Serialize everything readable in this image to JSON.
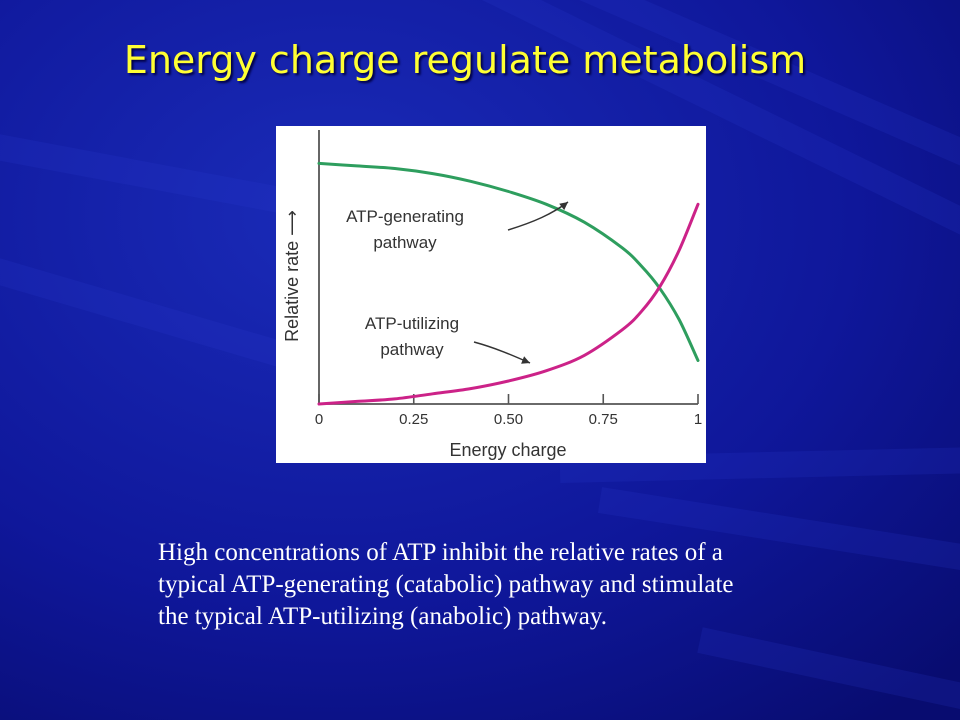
{
  "slide": {
    "title": "Energy charge regulate metabolism",
    "caption_lines": [
      "High concentrations of ATP inhibit the relative rates of a",
      "typical ATP-generating (catabolic) pathway and stimulate",
      "the typical ATP-utilizing (anabolic) pathway."
    ]
  },
  "colors": {
    "background": "#0c128a",
    "title": "#ffff33",
    "caption": "#ffffff",
    "generating_curve": "#2e9e5e",
    "utilizing_curve": "#cc2288"
  },
  "chart_data": {
    "type": "line",
    "xlabel": "Energy charge",
    "ylabel": "Relative rate ⟶",
    "xlim": [
      0,
      1
    ],
    "ylim": [
      0,
      1
    ],
    "x_ticks": [
      "0",
      "0.25",
      "0.50",
      "0.75",
      "1"
    ],
    "x_tick_values": [
      0,
      0.25,
      0.5,
      0.75,
      1
    ],
    "grid": false,
    "legend": "none",
    "series": [
      {
        "key": "generating",
        "label_lines": [
          "ATP-generating",
          "pathway"
        ],
        "x": [
          0,
          0.1,
          0.2,
          0.3,
          0.4,
          0.5,
          0.6,
          0.7,
          0.8,
          0.85,
          0.9,
          0.95,
          1.0
        ],
        "y": [
          0.94,
          0.93,
          0.92,
          0.9,
          0.87,
          0.83,
          0.78,
          0.71,
          0.61,
          0.54,
          0.45,
          0.33,
          0.17
        ]
      },
      {
        "key": "utilizing",
        "label_lines": [
          "ATP-utilizing",
          "pathway"
        ],
        "x": [
          0,
          0.1,
          0.2,
          0.3,
          0.4,
          0.5,
          0.6,
          0.7,
          0.8,
          0.85,
          0.9,
          0.95,
          1.0
        ],
        "y": [
          0.0,
          0.01,
          0.02,
          0.04,
          0.06,
          0.09,
          0.13,
          0.19,
          0.29,
          0.36,
          0.46,
          0.6,
          0.78
        ]
      }
    ]
  }
}
